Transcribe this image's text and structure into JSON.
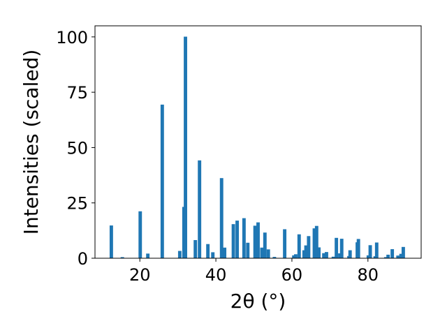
{
  "chart_data": {
    "type": "bar",
    "xlabel": "2θ (°)",
    "ylabel": "Intensities (scaled)",
    "xlim": [
      8.2,
      94.0
    ],
    "ylim": [
      0,
      105
    ],
    "xticks": [
      20,
      40,
      60,
      80
    ],
    "yticks": [
      0,
      25,
      50,
      75,
      100
    ],
    "bar_color": "#1f77b4",
    "bar_width": 0.9,
    "x": [
      12.5,
      15.4,
      20.1,
      22.1,
      25.9,
      30.5,
      31.6,
      32.0,
      34.6,
      35.7,
      37.9,
      39.2,
      41.5,
      42.3,
      44.6,
      45.6,
      47.4,
      48.4,
      50.3,
      51.1,
      52.1,
      52.9,
      53.8,
      55.4,
      58.1,
      60.5,
      61.0,
      61.9,
      63.2,
      63.7,
      64.4,
      65.9,
      66.5,
      67.1,
      68.4,
      69.1,
      70.9,
      71.7,
      72.6,
      73.1,
      75.0,
      75.3,
      77.2,
      77.5,
      80.1,
      80.6,
      81.9,
      82.3,
      84.7,
      85.3,
      86.4,
      87.9,
      88.7,
      89.3
    ],
    "values": [
      14.8,
      0.5,
      21.2,
      2.1,
      69.4,
      3.3,
      23.2,
      100.1,
      8.2,
      44.2,
      6.4,
      2.7,
      36.2,
      4.8,
      15.4,
      17.0,
      18.1,
      7.0,
      14.7,
      16.2,
      4.8,
      11.6,
      4.0,
      0.6,
      13.1,
      1.3,
      1.8,
      10.8,
      3.6,
      5.8,
      10.0,
      13.5,
      14.6,
      4.9,
      2.3,
      2.8,
      0.7,
      9.2,
      2.2,
      8.8,
      1.0,
      3.6,
      7.2,
      8.7,
      1.3,
      5.9,
      0.9,
      7.1,
      0.5,
      1.6,
      4.1,
      1.2,
      2.0,
      5.1
    ]
  }
}
